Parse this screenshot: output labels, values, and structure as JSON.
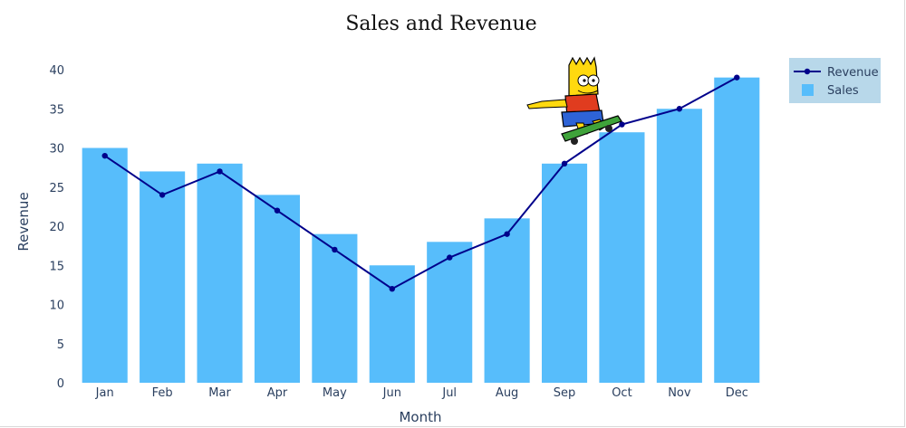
{
  "chart_data": {
    "type": "bar",
    "title": "Sales and Revenue",
    "xlabel": "Month",
    "ylabel": "Revenue",
    "categories": [
      "Jan",
      "Feb",
      "Mar",
      "Apr",
      "May",
      "Jun",
      "Jul",
      "Aug",
      "Sep",
      "Oct",
      "Nov",
      "Dec"
    ],
    "ylim": [
      0,
      40
    ],
    "yticks": [
      0,
      5,
      10,
      15,
      20,
      25,
      30,
      35,
      40
    ],
    "series": [
      {
        "name": "Sales",
        "type": "bar",
        "color": "#57bdfb",
        "values": [
          30,
          27,
          28,
          24,
          19,
          15,
          18,
          21,
          28,
          32,
          35,
          39
        ]
      },
      {
        "name": "Revenue",
        "type": "line",
        "color": "#00008b",
        "values": [
          29,
          24,
          27,
          22,
          17,
          12,
          16,
          19,
          28,
          33,
          35,
          39
        ]
      }
    ],
    "legend": {
      "placement": "top-right",
      "background": "#b8d8ea"
    },
    "grid": false
  },
  "decoration": {
    "icon": "skateboarding-cartoon-character-icon"
  }
}
